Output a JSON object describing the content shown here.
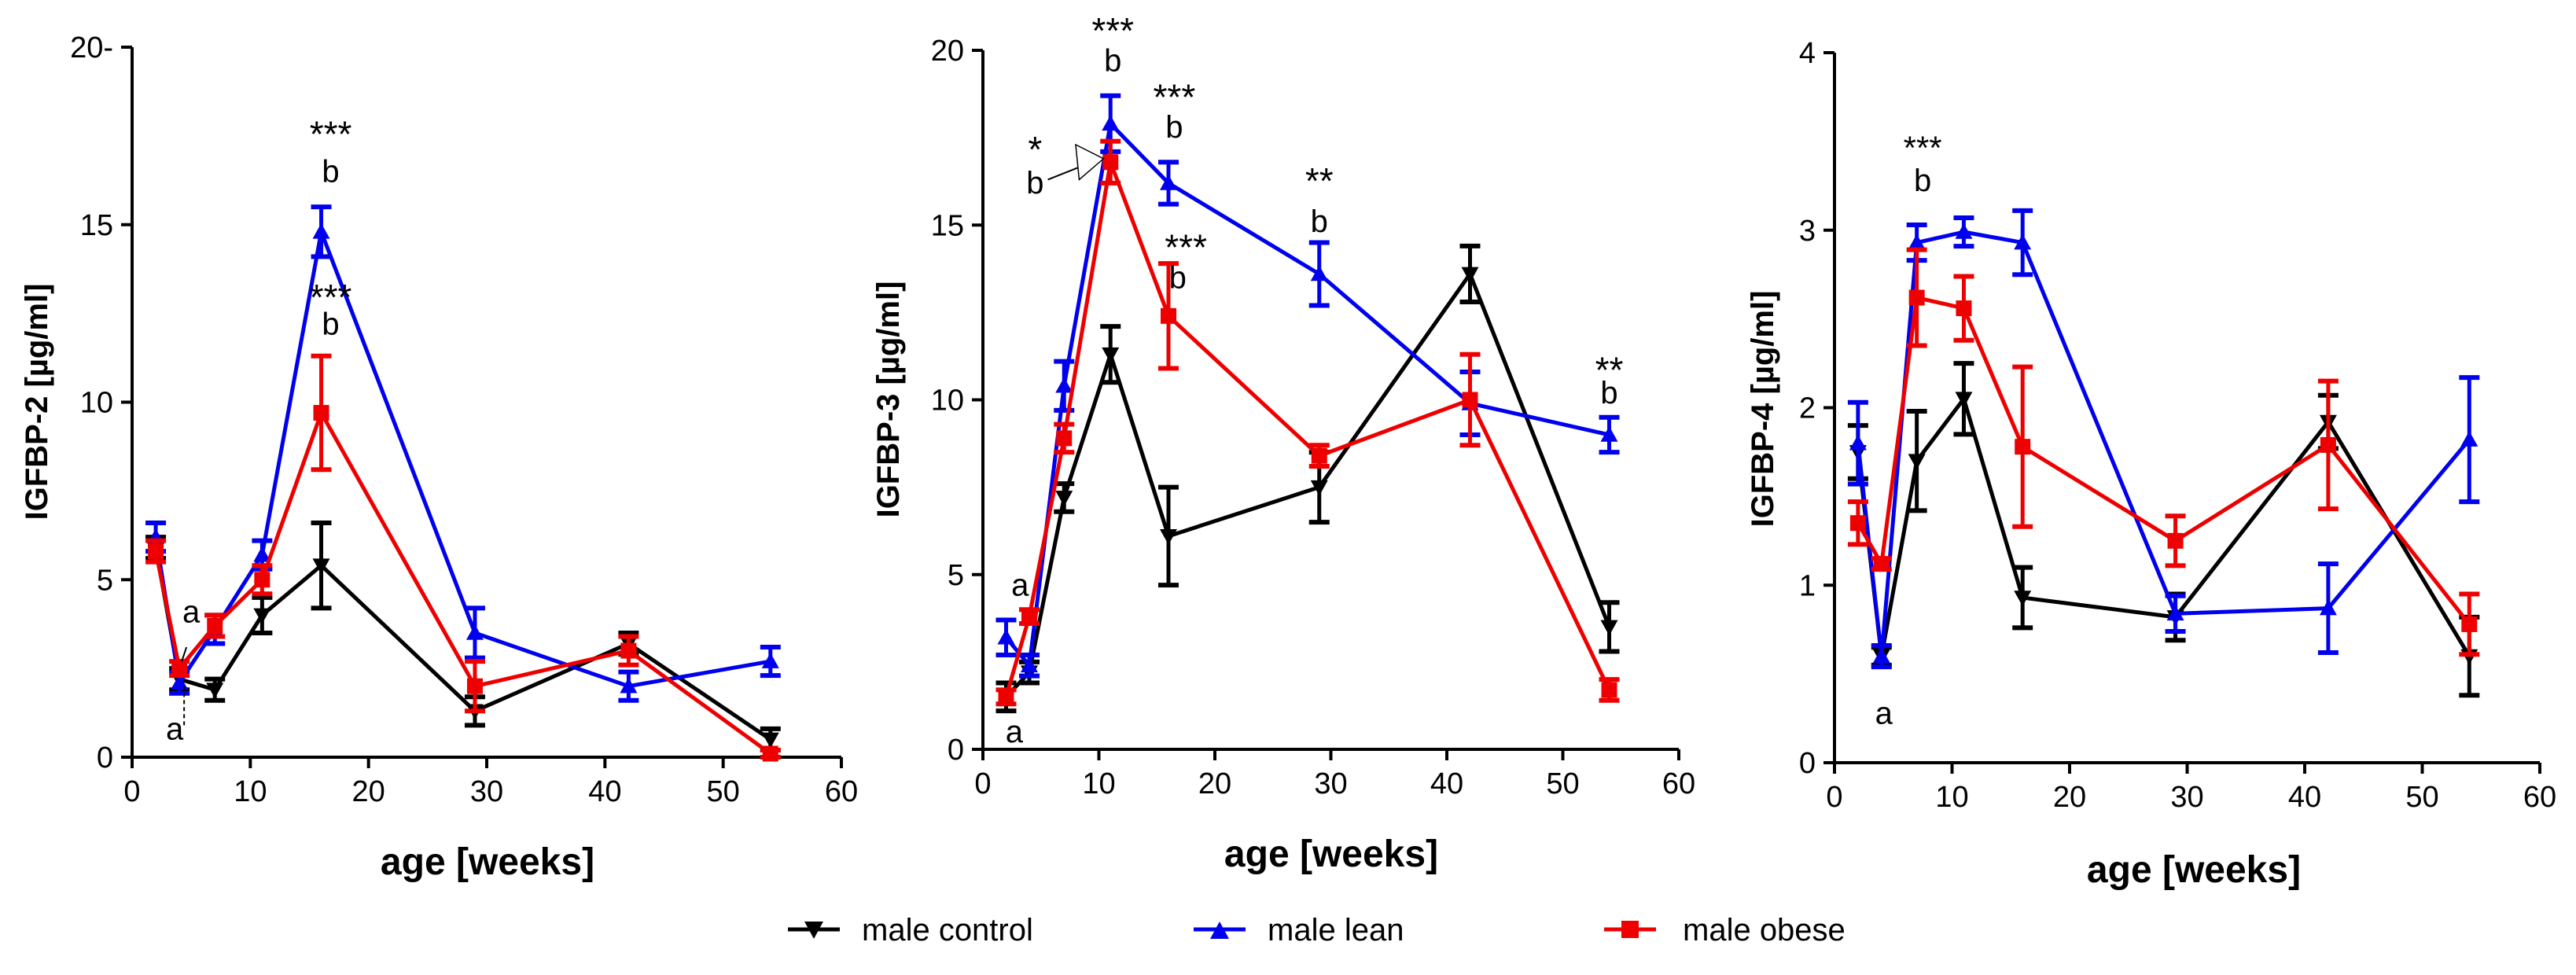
{
  "colors": {
    "control": "#000000",
    "lean": "#0000ee",
    "obese": "#ee0000"
  },
  "legend": [
    {
      "key": "control",
      "label": "male control",
      "marker": "triangle-down"
    },
    {
      "key": "lean",
      "label": "male lean",
      "marker": "triangle-up"
    },
    {
      "key": "obese",
      "label": "male obese",
      "marker": "square"
    }
  ],
  "chart_data": [
    {
      "type": "line",
      "ylabel": "IGFBP-2 [µg/ml]",
      "xlabel": "age [weeks]",
      "xlim": [
        0,
        60
      ],
      "ylim": [
        0,
        20
      ],
      "xticks": [
        0,
        10,
        20,
        30,
        40,
        50,
        60
      ],
      "yticks": [
        0,
        5,
        10,
        15,
        20
      ],
      "yticklabels": [
        "0",
        "5",
        "10",
        "15",
        "20-"
      ],
      "series": [
        {
          "key": "control",
          "x": [
            2,
            4,
            7,
            11,
            16,
            29,
            42,
            54
          ],
          "y": [
            5.9,
            2.2,
            1.9,
            4.0,
            5.4,
            1.3,
            3.2,
            0.5
          ],
          "err": [
            0.3,
            0.3,
            0.3,
            0.5,
            1.2,
            0.4,
            0.3,
            0.3
          ]
        },
        {
          "key": "lean",
          "x": [
            2,
            4,
            7,
            11,
            16,
            29,
            42,
            54
          ],
          "y": [
            6.2,
            2.1,
            3.6,
            5.7,
            14.8,
            3.5,
            2.0,
            2.7
          ],
          "err": [
            0.4,
            0.3,
            0.4,
            0.4,
            0.7,
            0.7,
            0.4,
            0.4
          ]
        },
        {
          "key": "obese",
          "x": [
            2,
            4,
            7,
            11,
            16,
            29,
            42,
            54
          ],
          "y": [
            5.8,
            2.5,
            3.7,
            5.0,
            9.7,
            2.0,
            3.0,
            0.1
          ],
          "err": [
            0.3,
            0.2,
            0.3,
            0.4,
            1.6,
            0.7,
            0.4,
            0.1
          ]
        }
      ],
      "annotations": [
        {
          "text": "***",
          "x": 16.8,
          "y": 17.2,
          "size": 46
        },
        {
          "text": "b",
          "x": 16.8,
          "y": 16.2,
          "size": 40
        },
        {
          "text": "***",
          "x": 16.8,
          "y": 12.6,
          "size": 46
        },
        {
          "text": "b",
          "x": 16.8,
          "y": 11.9,
          "size": 40
        },
        {
          "text": "a",
          "x": 5.0,
          "y": 3.8,
          "size": 40
        },
        {
          "text": "a",
          "x": 3.6,
          "y": 0.5,
          "size": 40
        }
      ]
    },
    {
      "type": "line",
      "ylabel": "IGFBP-3 [µg/ml]",
      "xlabel": "age [weeks]",
      "xlim": [
        0,
        60
      ],
      "ylim": [
        0,
        20
      ],
      "xticks": [
        0,
        10,
        20,
        30,
        40,
        50,
        60
      ],
      "yticks": [
        0,
        5,
        10,
        15,
        20
      ],
      "yticklabels": [
        "0",
        "5",
        "10",
        "15",
        "20"
      ],
      "series": [
        {
          "key": "control",
          "x": [
            2,
            4,
            7,
            11,
            16,
            29,
            42,
            54
          ],
          "y": [
            1.5,
            2.2,
            7.2,
            11.3,
            6.1,
            7.5,
            13.6,
            3.5
          ],
          "err": [
            0.4,
            0.3,
            0.4,
            0.8,
            1.4,
            1.0,
            0.8,
            0.7
          ]
        },
        {
          "key": "lean",
          "x": [
            2,
            4,
            7,
            11,
            16,
            29,
            42,
            54
          ],
          "y": [
            3.2,
            2.4,
            10.4,
            17.9,
            16.2,
            13.6,
            9.9,
            9.0
          ],
          "err": [
            0.5,
            0.3,
            0.7,
            0.8,
            0.6,
            0.9,
            0.9,
            0.5
          ]
        },
        {
          "key": "obese",
          "x": [
            2,
            4,
            7,
            11,
            16,
            29,
            42,
            54
          ],
          "y": [
            1.5,
            3.8,
            8.9,
            16.8,
            12.4,
            8.4,
            10.0,
            1.7
          ],
          "err": [
            0.2,
            0.2,
            0.4,
            0.6,
            1.5,
            0.3,
            1.3,
            0.3
          ]
        }
      ],
      "annotations": [
        {
          "text": "***",
          "x": 11.2,
          "y": 20.2,
          "size": 46
        },
        {
          "text": "b",
          "x": 11.2,
          "y": 19.4,
          "size": 40
        },
        {
          "text": "***",
          "x": 16.5,
          "y": 18.3,
          "size": 46
        },
        {
          "text": "b",
          "x": 16.5,
          "y": 17.5,
          "size": 40
        },
        {
          "text": "*",
          "x": 4.5,
          "y": 16.8,
          "size": 46
        },
        {
          "text": "b",
          "x": 4.5,
          "y": 15.9,
          "size": 40
        },
        {
          "text": "***",
          "x": 17.5,
          "y": 14.0,
          "size": 46
        },
        {
          "text": "b",
          "x": 16.8,
          "y": 13.2,
          "size": 40
        },
        {
          "text": "**",
          "x": 29.0,
          "y": 15.9,
          "size": 46
        },
        {
          "text": "b",
          "x": 29.0,
          "y": 14.8,
          "size": 40
        },
        {
          "text": "**",
          "x": 54.0,
          "y": 10.5,
          "size": 46
        },
        {
          "text": "b",
          "x": 54.0,
          "y": 9.9,
          "size": 40
        },
        {
          "text": "a",
          "x": 3.2,
          "y": 4.4,
          "size": 40
        },
        {
          "text": "a",
          "x": 2.7,
          "y": 0.2,
          "size": 40
        }
      ]
    },
    {
      "type": "line",
      "ylabel": "IGFBP-4 [µg/ml]",
      "xlabel": "age [weeks]",
      "xlim": [
        0,
        60
      ],
      "ylim": [
        0,
        4
      ],
      "xticks": [
        0,
        10,
        20,
        30,
        40,
        50,
        60
      ],
      "yticks": [
        0,
        1,
        2,
        3,
        4
      ],
      "yticklabels": [
        "0",
        "1",
        "2",
        "3",
        "4"
      ],
      "series": [
        {
          "key": "control",
          "x": [
            2,
            4,
            7,
            11,
            16,
            29,
            42,
            54
          ],
          "y": [
            1.75,
            0.6,
            1.7,
            2.05,
            0.93,
            0.82,
            1.92,
            0.6
          ],
          "err": [
            0.15,
            0.05,
            0.28,
            0.2,
            0.17,
            0.13,
            0.15,
            0.22
          ]
        },
        {
          "key": "lean",
          "x": [
            2,
            4,
            7,
            11,
            16,
            29,
            42,
            54
          ],
          "y": [
            1.8,
            0.6,
            2.93,
            2.99,
            2.93,
            0.84,
            0.87,
            1.82
          ],
          "err": [
            0.23,
            0.06,
            0.1,
            0.08,
            0.18,
            0.1,
            0.25,
            0.35
          ]
        },
        {
          "key": "obese",
          "x": [
            2,
            4,
            7,
            11,
            16,
            29,
            42,
            54
          ],
          "y": [
            1.35,
            1.12,
            2.62,
            2.56,
            1.78,
            1.25,
            1.79,
            0.78
          ],
          "err": [
            0.12,
            0.03,
            0.27,
            0.18,
            0.45,
            0.14,
            0.36,
            0.17
          ]
        }
      ],
      "annotations": [
        {
          "text": "***",
          "x": 7.5,
          "y": 3.4,
          "size": 42
        },
        {
          "text": "b",
          "x": 7.5,
          "y": 3.22,
          "size": 40
        },
        {
          "text": "a",
          "x": 4.2,
          "y": 0.22,
          "size": 40
        }
      ]
    }
  ]
}
